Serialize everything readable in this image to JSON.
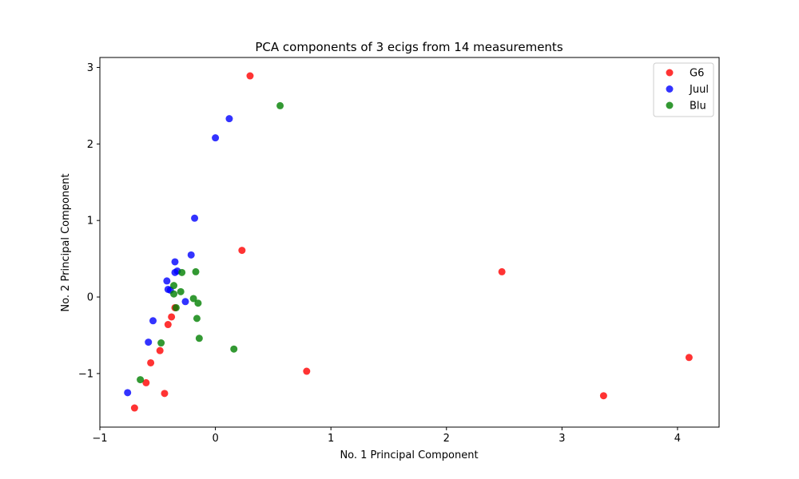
{
  "chart_data": {
    "type": "scatter",
    "title": "PCA components of 3 ecigs from 14 measurements",
    "xlabel": "No. 1 Principal Component",
    "ylabel": "No. 2 Principal Component",
    "xlim": [
      -1.0,
      4.36
    ],
    "ylim": [
      -1.7,
      3.13
    ],
    "xticks": [
      -1,
      0,
      1,
      2,
      3,
      4
    ],
    "yticks": [
      -1,
      0,
      1,
      2,
      3
    ],
    "xtick_labels": [
      "−1",
      "0",
      "1",
      "2",
      "3",
      "4"
    ],
    "ytick_labels": [
      "−1",
      "0",
      "1",
      "2",
      "3"
    ],
    "grid": false,
    "legend_position": "top-right",
    "series": [
      {
        "name": "G6",
        "color": "#ff0000",
        "points": [
          [
            0.3,
            2.89
          ],
          [
            0.23,
            0.61
          ],
          [
            2.48,
            0.33
          ],
          [
            4.1,
            -0.79
          ],
          [
            3.36,
            -1.29
          ],
          [
            0.79,
            -0.97
          ],
          [
            -0.35,
            -0.14
          ],
          [
            -0.38,
            -0.26
          ],
          [
            -0.41,
            -0.36
          ],
          [
            -0.48,
            -0.7
          ],
          [
            -0.56,
            -0.86
          ],
          [
            -0.6,
            -1.12
          ],
          [
            -0.44,
            -1.26
          ],
          [
            -0.7,
            -1.45
          ]
        ]
      },
      {
        "name": "Juul",
        "color": "#0000ff",
        "points": [
          [
            0.12,
            2.33
          ],
          [
            0.0,
            2.08
          ],
          [
            -0.18,
            1.03
          ],
          [
            -0.21,
            0.55
          ],
          [
            -0.35,
            0.46
          ],
          [
            -0.35,
            0.32
          ],
          [
            -0.33,
            0.34
          ],
          [
            -0.42,
            0.21
          ],
          [
            -0.41,
            0.1
          ],
          [
            -0.39,
            0.09
          ],
          [
            -0.26,
            -0.06
          ],
          [
            -0.54,
            -0.31
          ],
          [
            -0.58,
            -0.59
          ],
          [
            -0.76,
            -1.25
          ]
        ]
      },
      {
        "name": "Blu",
        "color": "#008000",
        "points": [
          [
            0.56,
            2.5
          ],
          [
            -0.29,
            0.32
          ],
          [
            -0.17,
            0.33
          ],
          [
            -0.36,
            0.15
          ],
          [
            -0.3,
            0.07
          ],
          [
            -0.36,
            0.04
          ],
          [
            -0.19,
            -0.02
          ],
          [
            -0.15,
            -0.08
          ],
          [
            -0.34,
            -0.14
          ],
          [
            -0.16,
            -0.28
          ],
          [
            -0.14,
            -0.54
          ],
          [
            0.16,
            -0.68
          ],
          [
            -0.47,
            -0.6
          ],
          [
            -0.65,
            -1.08
          ]
        ]
      }
    ]
  }
}
